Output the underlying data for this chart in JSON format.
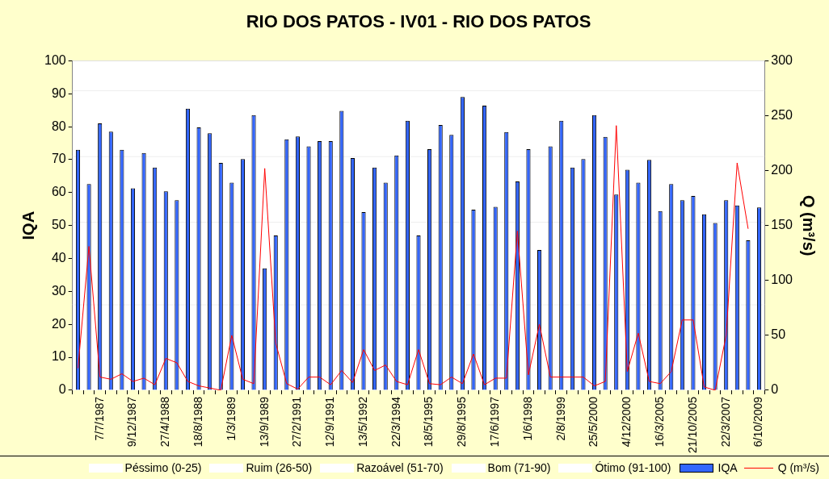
{
  "chart_data": {
    "type": "bar",
    "title": "RIO DOS PATOS - IV01 - RIO DOS PATOS",
    "ylabel": "IQA",
    "y2label": "Q (m³/s)",
    "categories": [
      null,
      null,
      "7/7/1987",
      null,
      null,
      "9/12/1987",
      null,
      null,
      "27/4/1988",
      null,
      null,
      "18/8/1988",
      null,
      null,
      "1/3/1989",
      null,
      null,
      "13/9/1989",
      null,
      null,
      "27/2/1991",
      null,
      null,
      "12/9/1991",
      null,
      null,
      "13/5/1992",
      null,
      null,
      "22/3/1994",
      null,
      null,
      "18/5/1995",
      null,
      null,
      "29/8/1995",
      null,
      null,
      "17/6/1997",
      null,
      null,
      "1/6/1998",
      null,
      null,
      "2/8/1999",
      null,
      null,
      "25/5/2000",
      null,
      null,
      "4/12/2000",
      null,
      null,
      "16/3/2005",
      null,
      null,
      "21/10/2005",
      null,
      null,
      "22/3/2007",
      null,
      null,
      "6/10/2009"
    ],
    "series": [
      {
        "name": "IQA",
        "color": "#3366ff",
        "values": [
          73,
          62.6,
          81,
          78.5,
          73,
          61.3,
          72,
          67.6,
          60.4,
          57.7,
          85.5,
          79.8,
          78,
          69,
          63,
          70.2,
          83.5,
          37,
          47,
          76.2,
          77,
          74,
          75.6,
          75.6,
          84.8,
          70.5,
          54.1,
          67.6,
          63,
          71.3,
          81.8,
          47,
          73.2,
          80.5,
          77.5,
          89,
          54.8,
          86.4,
          55.7,
          78.4,
          63.4,
          73.2,
          42.6,
          74,
          81.8,
          67.6,
          70.2,
          83.5,
          76.9,
          59.4,
          66.9,
          63,
          69.9,
          54.4,
          62.6,
          57.7,
          59,
          53.4,
          50.8,
          57.7,
          56.1,
          45.5,
          55.5
        ]
      },
      {
        "name": "Q (m³/s)",
        "type": "line",
        "axis": "y2",
        "color": "#ff0000",
        "values": [
          20,
          131,
          12,
          10,
          15,
          8,
          11,
          5,
          29,
          25,
          8,
          4,
          2,
          0,
          50,
          10,
          6,
          202,
          43,
          6,
          1,
          12,
          12,
          5,
          18,
          7,
          37,
          18,
          23,
          8,
          5,
          37,
          6,
          5,
          12,
          6,
          33,
          5,
          11,
          11,
          145,
          14,
          60,
          12,
          12,
          12,
          12,
          4,
          8,
          241,
          17,
          52,
          8,
          6,
          17,
          64,
          64,
          3,
          0,
          50,
          207,
          147,
          null
        ]
      }
    ],
    "ylim": [
      0,
      100
    ],
    "yticks": [
      0,
      10,
      20,
      30,
      40,
      50,
      60,
      70,
      80,
      90,
      100
    ],
    "y2lim": [
      0,
      300
    ],
    "y2ticks": [
      0,
      50,
      100,
      150,
      200,
      250,
      300
    ],
    "bands": [
      {
        "axis": "y",
        "from": 0,
        "to": 26,
        "label": "Péssimo (0-25)",
        "color": "#ffffff"
      },
      {
        "axis": "y",
        "from": 26,
        "to": 51,
        "label": "Ruim (26-50)",
        "color": "#ffffff"
      },
      {
        "axis": "y",
        "from": 51,
        "to": 71,
        "label": "Razoável (51-70)",
        "color": "#ffffff"
      },
      {
        "axis": "y",
        "from": 71,
        "to": 91,
        "label": "Bom (71-90)",
        "color": "#ffffff"
      },
      {
        "axis": "y",
        "from": 91,
        "to": 100,
        "label": "Ótimo (91-100)",
        "color": "#ffffff"
      }
    ],
    "legend": "bottom",
    "grid": false
  }
}
